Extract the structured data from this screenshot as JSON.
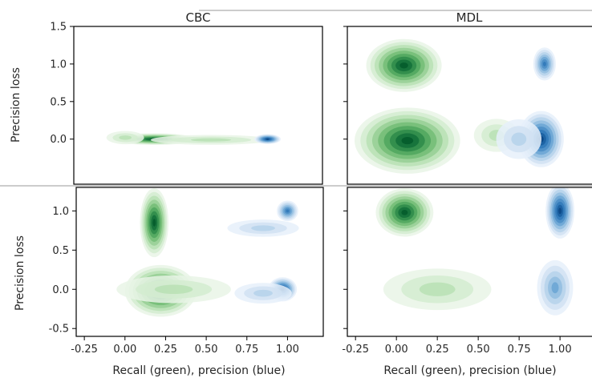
{
  "chart_data": {
    "type": "kde-contour",
    "colors": {
      "green": "#2e8b4a",
      "blue": "#2f78b8"
    },
    "panels": [
      {
        "title": "CBC",
        "ylabel": "Precision loss",
        "xlabel": "",
        "xlim": [
          -0.25,
          1.2
        ],
        "ylim": [
          -0.6,
          1.5
        ],
        "yticks": [
          "1.5",
          "1.0",
          "0.5",
          "0.0"
        ],
        "xticks": [],
        "blobs": [
          {
            "color": "green",
            "x": 0.22,
            "y": 0.0,
            "sx": 0.11,
            "sy": 0.035,
            "peak": 1.0
          },
          {
            "color": "green",
            "x": 0.55,
            "y": -0.01,
            "sx": 0.16,
            "sy": 0.03,
            "peak": 0.35
          },
          {
            "color": "green",
            "x": 0.05,
            "y": 0.02,
            "sx": 0.05,
            "sy": 0.04,
            "peak": 0.3
          },
          {
            "color": "blue",
            "x": 0.88,
            "y": 0.0,
            "sx": 0.035,
            "sy": 0.03,
            "peak": 1.0
          }
        ]
      },
      {
        "title": "MDL",
        "ylabel": "",
        "xlabel": "",
        "xlim": [
          -0.25,
          1.2
        ],
        "ylim": [
          -0.6,
          1.5
        ],
        "yticks": [],
        "xticks": [],
        "blobs": [
          {
            "color": "green",
            "x": 0.08,
            "y": 0.98,
            "sx": 0.1,
            "sy": 0.16,
            "peak": 1.0
          },
          {
            "color": "green",
            "x": 0.1,
            "y": -0.02,
            "sx": 0.14,
            "sy": 0.2,
            "peak": 1.0
          },
          {
            "color": "green",
            "x": 0.62,
            "y": 0.05,
            "sx": 0.06,
            "sy": 0.1,
            "peak": 0.3
          },
          {
            "color": "blue",
            "x": 0.9,
            "y": 1.0,
            "sx": 0.03,
            "sy": 0.1,
            "peak": 0.8
          },
          {
            "color": "blue",
            "x": 0.88,
            "y": 0.0,
            "sx": 0.06,
            "sy": 0.17,
            "peak": 1.0
          },
          {
            "color": "blue",
            "x": 0.75,
            "y": 0.0,
            "sx": 0.06,
            "sy": 0.12,
            "peak": 0.35
          }
        ]
      },
      {
        "title": "",
        "ylabel": "Precision loss",
        "xlabel": "Recall (green), precision (blue)",
        "xlim": [
          -0.3,
          1.22
        ],
        "ylim": [
          -0.6,
          1.3
        ],
        "yticks": [
          "1.0",
          "0.5",
          "0.0",
          "-0.5"
        ],
        "xticks": [
          "-0.25",
          "0.00",
          "0.25",
          "0.50",
          "0.75",
          "1.00"
        ],
        "blobs": [
          {
            "color": "green",
            "x": 0.18,
            "y": 0.85,
            "sx": 0.04,
            "sy": 0.2,
            "peak": 1.0
          },
          {
            "color": "green",
            "x": 0.22,
            "y": -0.02,
            "sx": 0.1,
            "sy": 0.15,
            "peak": 1.0
          },
          {
            "color": "green",
            "x": 0.3,
            "y": 0.0,
            "sx": 0.16,
            "sy": 0.08,
            "peak": 0.35
          },
          {
            "color": "blue",
            "x": 1.0,
            "y": 1.0,
            "sx": 0.03,
            "sy": 0.06,
            "peak": 0.8
          },
          {
            "color": "blue",
            "x": 0.85,
            "y": 0.78,
            "sx": 0.1,
            "sy": 0.05,
            "peak": 0.3
          },
          {
            "color": "blue",
            "x": 0.97,
            "y": 0.0,
            "sx": 0.04,
            "sy": 0.07,
            "peak": 1.0
          },
          {
            "color": "blue",
            "x": 0.85,
            "y": -0.05,
            "sx": 0.08,
            "sy": 0.06,
            "peak": 0.3
          }
        ]
      },
      {
        "title": "",
        "ylabel": "",
        "xlabel": "Recall (green), precision (blue)",
        "xlim": [
          -0.3,
          1.22
        ],
        "ylim": [
          -0.6,
          1.3
        ],
        "yticks": [],
        "xticks": [
          "-0.25",
          "0.00",
          "0.25",
          "0.50",
          "0.75",
          "1.00"
        ],
        "blobs": [
          {
            "color": "green",
            "x": 0.05,
            "y": 0.98,
            "sx": 0.08,
            "sy": 0.14,
            "peak": 1.0
          },
          {
            "color": "green",
            "x": 0.25,
            "y": 0.0,
            "sx": 0.15,
            "sy": 0.12,
            "peak": 0.35
          },
          {
            "color": "blue",
            "x": 1.0,
            "y": 1.0,
            "sx": 0.04,
            "sy": 0.16,
            "peak": 1.0
          },
          {
            "color": "blue",
            "x": 0.97,
            "y": 0.02,
            "sx": 0.05,
            "sy": 0.16,
            "peak": 0.55
          }
        ]
      }
    ]
  }
}
